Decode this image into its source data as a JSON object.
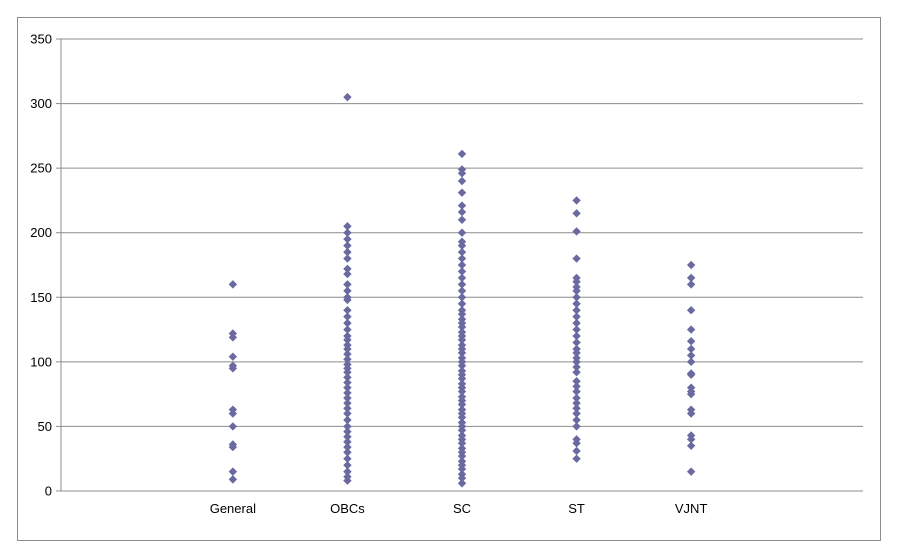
{
  "chart_data": {
    "type": "scatter",
    "title": "",
    "xlabel": "",
    "ylabel": "",
    "ylim": [
      0,
      350
    ],
    "yticks": [
      0,
      50,
      100,
      150,
      200,
      250,
      300,
      350
    ],
    "grid": true,
    "legend": "none",
    "categories": [
      "General",
      "OBCs",
      "SC",
      "ST",
      "VJNT"
    ],
    "marker_color": "#6a6aa0",
    "series": [
      {
        "category": "General",
        "values": [
          160,
          122,
          119,
          104,
          97,
          95,
          63,
          60,
          50,
          36,
          34,
          15,
          9
        ]
      },
      {
        "category": "OBCs",
        "values": [
          305,
          205,
          200,
          195,
          190,
          185,
          180,
          172,
          168,
          160,
          155,
          150,
          148,
          140,
          135,
          130,
          125,
          120,
          117,
          113,
          110,
          106,
          102,
          98,
          95,
          92,
          88,
          84,
          80,
          76,
          72,
          68,
          64,
          60,
          55,
          50,
          46,
          42,
          38,
          34,
          30,
          25,
          20,
          15,
          11,
          8
        ]
      },
      {
        "category": "SC",
        "values": [
          261,
          249,
          246,
          240,
          231,
          221,
          216,
          210,
          200,
          193,
          190,
          185,
          180,
          175,
          170,
          165,
          160,
          155,
          150,
          145,
          140,
          137,
          133,
          130,
          127,
          123,
          120,
          117,
          113,
          110,
          107,
          103,
          100,
          97,
          93,
          90,
          87,
          83,
          80,
          77,
          73,
          70,
          67,
          63,
          60,
          57,
          53,
          50,
          47,
          43,
          40,
          37,
          33,
          30,
          27,
          23,
          20,
          17,
          13,
          10,
          6
        ]
      },
      {
        "category": "ST",
        "values": [
          225,
          215,
          201,
          180,
          165,
          162,
          158,
          155,
          150,
          145,
          140,
          135,
          130,
          125,
          120,
          115,
          110,
          107,
          103,
          100,
          96,
          92,
          85,
          81,
          77,
          72,
          68,
          64,
          60,
          55,
          50,
          40,
          37,
          31,
          25
        ]
      },
      {
        "category": "VJNT",
        "values": [
          175,
          165,
          160,
          140,
          125,
          116,
          110,
          105,
          100,
          91,
          90,
          80,
          77,
          75,
          63,
          60,
          43,
          40,
          35,
          15
        ]
      }
    ]
  }
}
